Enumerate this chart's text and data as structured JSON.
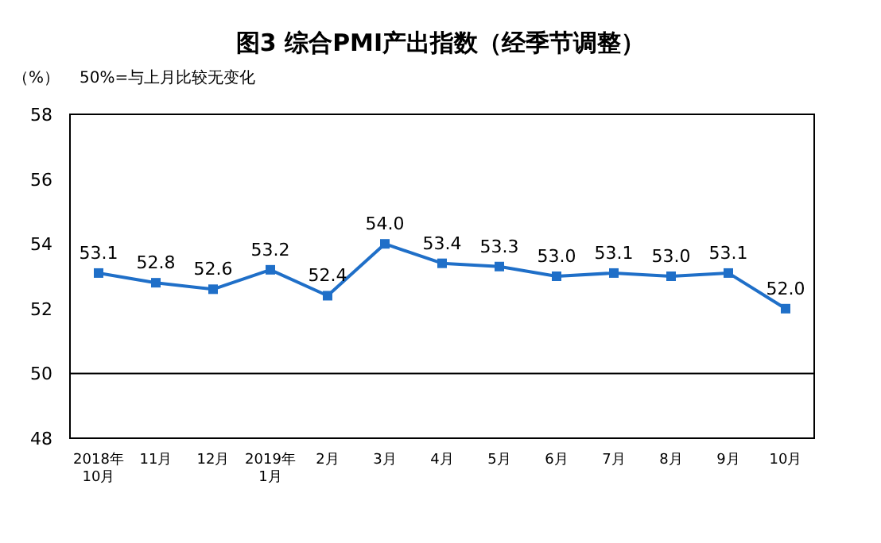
{
  "chart_data": {
    "type": "line",
    "title": "图3 综合PMI产出指数（经季节调整）",
    "ylabel": "（%）",
    "annotations": [
      "50%=与上月比较无变化"
    ],
    "categories": [
      "2018年\n10月",
      "11月",
      "12月",
      "2019年\n1月",
      "2月",
      "3月",
      "4月",
      "5月",
      "6月",
      "7月",
      "8月",
      "9月",
      "10月"
    ],
    "series": [
      {
        "color": "#1f6fc8",
        "values": [
          53.1,
          52.8,
          52.6,
          53.2,
          52.4,
          54.0,
          53.4,
          53.3,
          53.0,
          53.1,
          53.0,
          53.1,
          52.0
        ],
        "value_labels": [
          "53.1",
          "52.8",
          "52.6",
          "53.2",
          "52.4",
          "54.0",
          "53.4",
          "53.3",
          "53.0",
          "53.1",
          "53.0",
          "53.1",
          "52.0"
        ]
      }
    ],
    "ylim": [
      48,
      58
    ],
    "yticks": [
      48,
      50,
      52,
      54,
      56,
      58
    ],
    "ref_lines": [
      {
        "axis": "y",
        "value": 50,
        "color": "#000000"
      }
    ],
    "marker": "square"
  }
}
